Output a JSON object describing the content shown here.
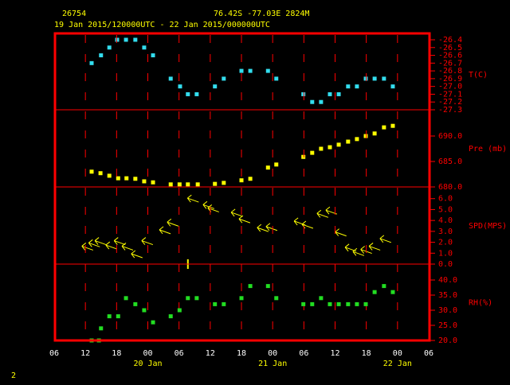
{
  "header": {
    "station": "26754",
    "location": "76.42S  -77.03E  2824M",
    "period": "19 Jan 2015/120000UTC - 22 Jan 2015/000000UTC",
    "page": "2"
  },
  "chart_data": [
    {
      "type": "scatter",
      "ylabel": "T(C)",
      "color": "#33ddee",
      "xlim": [
        0,
        72
      ],
      "ylim": [
        -27.3,
        -26.4
      ],
      "yticks": [
        -26.4,
        -26.5,
        -26.6,
        -26.7,
        -26.8,
        -26.9,
        {
          "value": -27,
          "label": "-27.0"
        },
        -27.1,
        -27.2,
        -27.3
      ],
      "x": [
        7.2,
        9.0,
        10.6,
        12.1,
        13.8,
        15.6,
        17.3,
        19.0,
        22.4,
        24.2,
        25.7,
        27.4,
        30.9,
        32.6,
        36.0,
        37.7,
        41.1,
        42.7,
        47.9,
        49.6,
        51.3,
        53.0,
        54.7,
        56.5,
        58.2,
        59.9,
        61.6,
        63.4,
        65.1
      ],
      "values": [
        -26.7,
        -26.6,
        -26.5,
        -26.4,
        -26.4,
        -26.4,
        -26.5,
        -26.6,
        -26.9,
        -27.0,
        -27.1,
        -27.1,
        -27.0,
        -26.9,
        -26.8,
        -26.8,
        -26.8,
        -26.9,
        -27.1,
        -27.2,
        -27.2,
        -27.1,
        -27.1,
        -27.0,
        -27.0,
        -26.9,
        -26.9,
        -26.9,
        -27.0
      ]
    },
    {
      "type": "scatter",
      "ylabel": "Pre (mb)",
      "color": "#ffff00",
      "xlim": [
        0,
        72
      ],
      "ylim": [
        680,
        695
      ],
      "yticks": [
        {
          "value": 690,
          "label": "690.0"
        },
        {
          "value": 685,
          "label": "685.0"
        },
        {
          "value": 680,
          "label": "680.0"
        }
      ],
      "x": [
        7.2,
        8.9,
        10.6,
        12.3,
        13.9,
        15.6,
        17.3,
        19.0,
        22.4,
        24.1,
        25.7,
        27.6,
        30.9,
        32.6,
        36.0,
        37.7,
        41.1,
        42.7,
        47.9,
        49.6,
        51.3,
        53.0,
        54.7,
        56.5,
        58.2,
        59.9,
        61.6,
        63.4,
        65.1
      ],
      "values": [
        683.0,
        682.7,
        682.2,
        681.7,
        681.7,
        681.6,
        681.1,
        680.9,
        680.5,
        680.5,
        680.5,
        680.5,
        680.6,
        680.8,
        681.3,
        681.6,
        683.8,
        684.4,
        685.9,
        686.7,
        687.5,
        687.8,
        688.3,
        688.9,
        689.4,
        690.0,
        690.5,
        691.7,
        692.0
      ]
    },
    {
      "type": "wind",
      "ylabel": "SPD(MPS)",
      "color": "#ffff00",
      "xlim": [
        0,
        72
      ],
      "ylim": [
        0,
        7
      ],
      "yticks": [
        {
          "value": 6,
          "label": "6.0"
        },
        {
          "value": 5,
          "label": "5.0"
        },
        {
          "value": 4,
          "label": "4.0"
        },
        {
          "value": 3,
          "label": "3.0"
        },
        {
          "value": 2,
          "label": "2.0"
        },
        {
          "value": 1,
          "label": "1.0"
        },
        {
          "value": 0,
          "label": "0.0"
        }
      ],
      "x": [
        6.4,
        7.7,
        8.9,
        11.0,
        12.6,
        14.1,
        15.9,
        17.9,
        21.3,
        22.8,
        25.7,
        26.7,
        29.7,
        30.6,
        35.1,
        36.6,
        40.1,
        41.8,
        47.2,
        48.7,
        51.6,
        53.3,
        55.1,
        57.0,
        58.5,
        60.0,
        61.6,
        63.7
      ],
      "values": [
        1.5,
        1.8,
        2.0,
        1.6,
        2.0,
        1.5,
        0.8,
        2.0,
        3.0,
        3.7,
        0.0,
        5.9,
        5.3,
        5.0,
        4.6,
        4.0,
        3.2,
        3.3,
        3.8,
        3.5,
        4.5,
        4.8,
        2.8,
        1.4,
        1.0,
        1.2,
        1.5,
        2.2
      ]
    },
    {
      "type": "scatter",
      "ylabel": "RH(%)",
      "color": "#22dd22",
      "xlim": [
        0,
        72
      ],
      "ylim": [
        20,
        45
      ],
      "yticks": [
        {
          "value": 40,
          "label": "40.0"
        },
        {
          "value": 35,
          "label": "35.0"
        },
        {
          "value": 30,
          "label": "30.0"
        },
        {
          "value": 25,
          "label": "25.0"
        },
        {
          "value": 20,
          "label": "20.0"
        }
      ],
      "x": [
        7.2,
        8.6,
        9.0,
        10.6,
        12.3,
        13.8,
        15.6,
        17.3,
        19.0,
        22.4,
        24.1,
        25.7,
        27.4,
        30.9,
        32.6,
        36.0,
        37.7,
        41.1,
        42.7,
        47.9,
        49.6,
        51.3,
        53.0,
        54.7,
        56.5,
        58.2,
        59.9,
        61.6,
        63.4,
        65.1
      ],
      "values": [
        20,
        20,
        24,
        28,
        28,
        34,
        32,
        30,
        26,
        28,
        30,
        34,
        34,
        32,
        32,
        34,
        38,
        38,
        34,
        32,
        32,
        34,
        32,
        32,
        32,
        32,
        32,
        36,
        38,
        36
      ],
      "xticks": [
        {
          "value": 0,
          "label": "06"
        },
        {
          "value": 6,
          "label": "12"
        },
        {
          "value": 12,
          "label": "18"
        },
        {
          "value": 18,
          "label": "00"
        },
        {
          "value": 24,
          "label": "06"
        },
        {
          "value": 30,
          "label": "12"
        },
        {
          "value": 36,
          "label": "18"
        },
        {
          "value": 42,
          "label": "00"
        },
        {
          "value": 48,
          "label": "06"
        },
        {
          "value": 54,
          "label": "12"
        },
        {
          "value": 60,
          "label": "18"
        },
        {
          "value": 66,
          "label": "00"
        },
        {
          "value": 72,
          "label": "06"
        }
      ],
      "x_date_labels": [
        {
          "value": 18,
          "label": "20 Jan"
        },
        {
          "value": 42,
          "label": "21 Jan"
        },
        {
          "value": 66,
          "label": "22 Jan"
        }
      ]
    }
  ]
}
